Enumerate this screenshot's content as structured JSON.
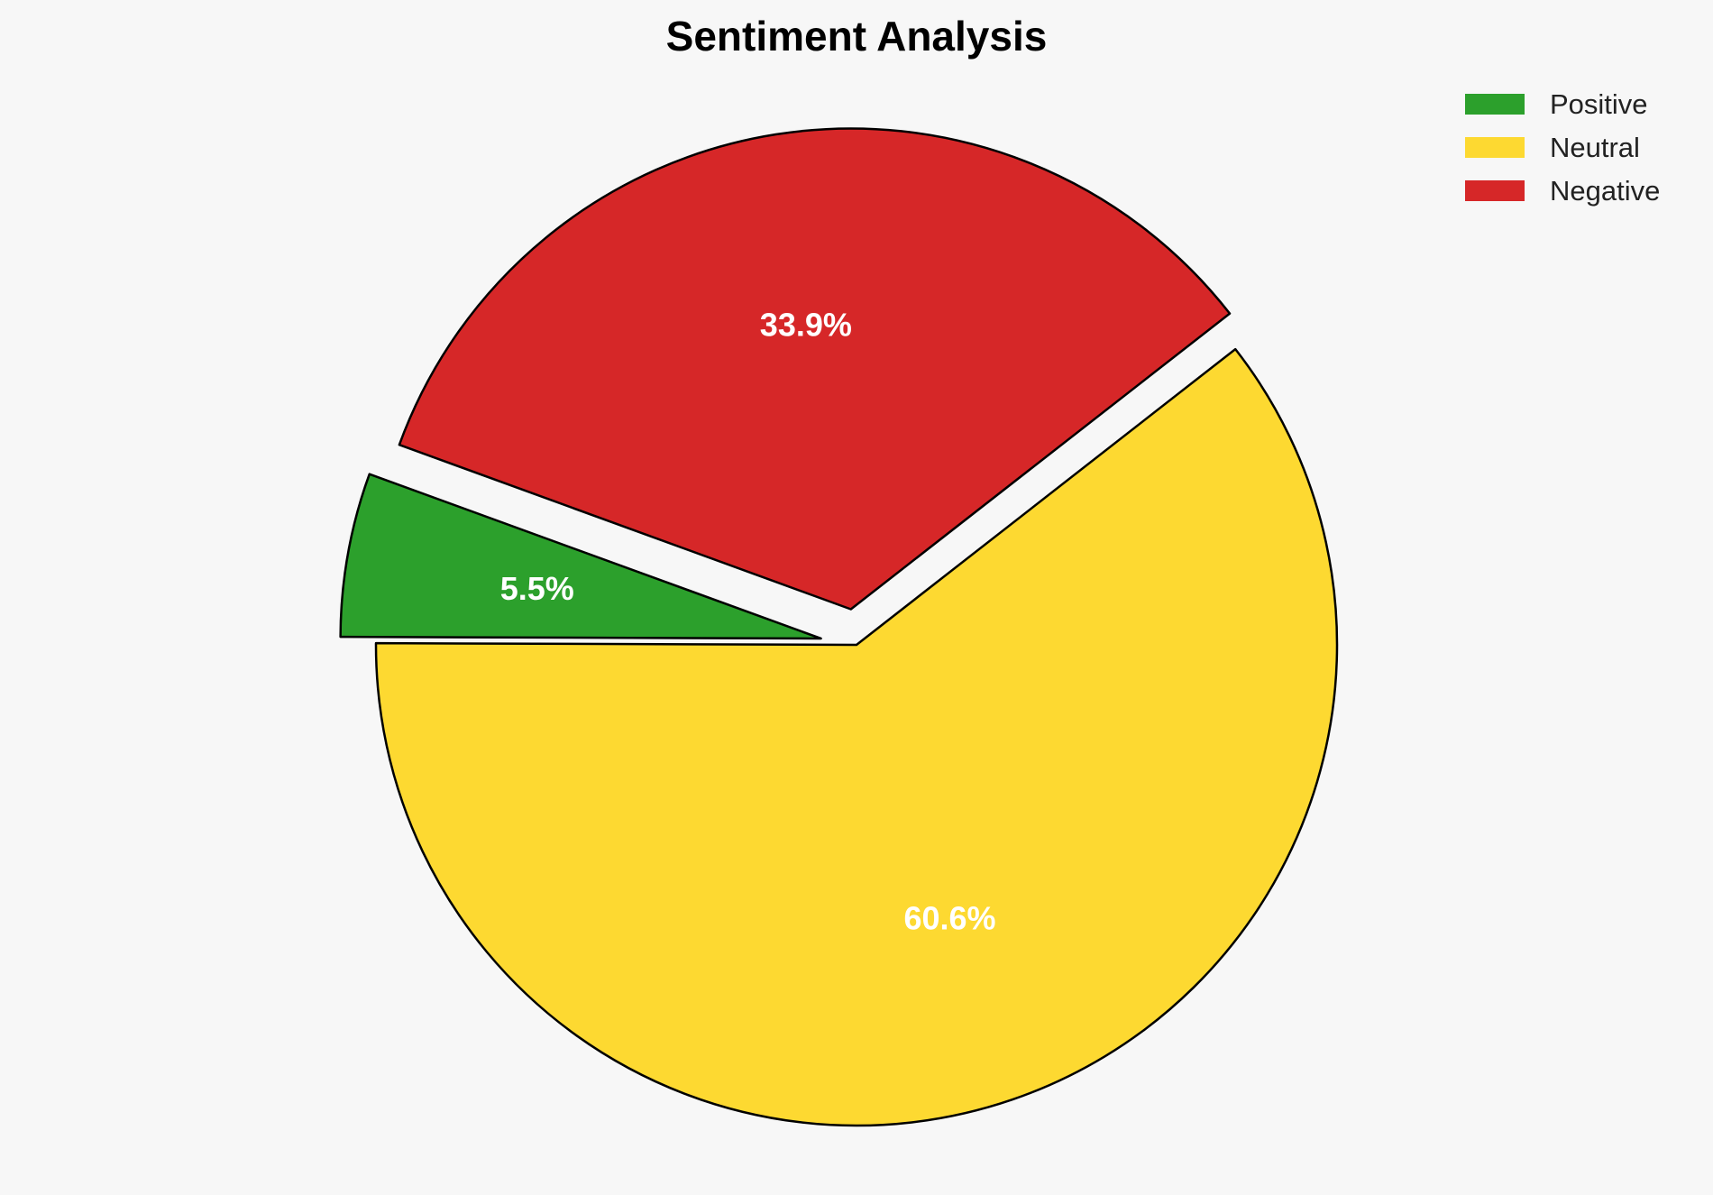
{
  "chart_data": {
    "type": "pie",
    "title": "Sentiment Analysis",
    "legend_position": "top-right",
    "start_angle_deg": 160,
    "direction": "counterclockwise",
    "slices": [
      {
        "label": "Positive",
        "value": 5.5,
        "display": "5.5%",
        "color": "#2ca02c",
        "exploded": true
      },
      {
        "label": "Neutral",
        "value": 60.6,
        "display": "60.6%",
        "color": "#fdd931",
        "exploded": false
      },
      {
        "label": "Negative",
        "value": 33.9,
        "display": "33.9%",
        "color": "#d62728",
        "exploded": true
      }
    ]
  }
}
